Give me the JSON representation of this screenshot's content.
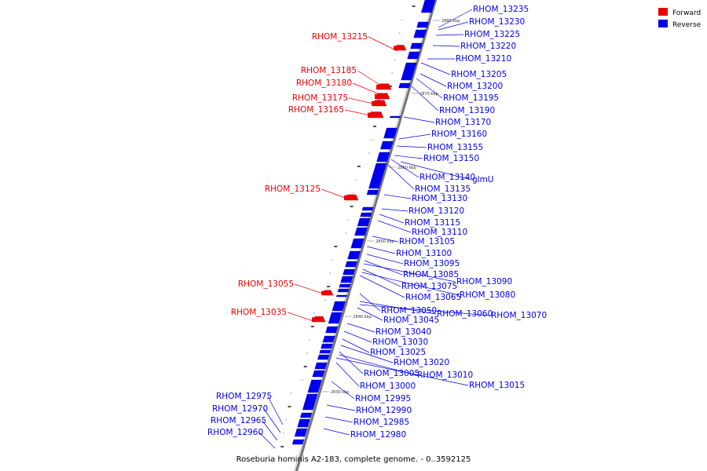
{
  "footer": "Roseburia hominis A2-183, complete genome. - 0..3592125",
  "legend": [
    {
      "label": "Forward",
      "color": "#ee0000"
    },
    {
      "label": "Reverse",
      "color": "#0000ee"
    }
  ],
  "colors": {
    "forward": "#ee0000",
    "reverse": "#0000ee",
    "backbone": "#777777"
  },
  "ticks": [
    "2880 kbp",
    "2870 kbp",
    "2860 kbp",
    "2850 kbp",
    "2840 kbp",
    "2830 kbp"
  ],
  "forward_genes": [
    "RHOM_13215",
    "RHOM_13185",
    "RHOM_13180",
    "RHOM_13175",
    "RHOM_13165",
    "RHOM_13125",
    "RHOM_13055",
    "RHOM_13035"
  ],
  "reverse_genes": [
    "RHOM_13235",
    "RHOM_13230",
    "RHOM_13225",
    "RHOM_13220",
    "RHOM_13210",
    "RHOM_13205",
    "RHOM_13200",
    "RHOM_13195",
    "RHOM_13190",
    "RHOM_13170",
    "RHOM_13160",
    "RHOM_13155",
    "RHOM_13150",
    "RHOM_13140",
    "glmU",
    "RHOM_13135",
    "RHOM_13130",
    "RHOM_13120",
    "RHOM_13115",
    "RHOM_13110",
    "RHOM_13105",
    "RHOM_13100",
    "RHOM_13095",
    "RHOM_13085",
    "RHOM_13090",
    "RHOM_13075",
    "RHOM_13080",
    "RHOM_13065",
    "RHOM_13050",
    "RHOM_13060",
    "RHOM_13070",
    "RHOM_13045",
    "RHOM_13040",
    "RHOM_13030",
    "RHOM_13025",
    "RHOM_13020",
    "RHOM_13005",
    "RHOM_13010",
    "RHOM_13000",
    "RHOM_13015",
    "RHOM_12995",
    "RHOM_12990",
    "RHOM_12985",
    "RHOM_12980",
    "RHOM_12975",
    "RHOM_12970",
    "RHOM_12965",
    "RHOM_12960"
  ]
}
